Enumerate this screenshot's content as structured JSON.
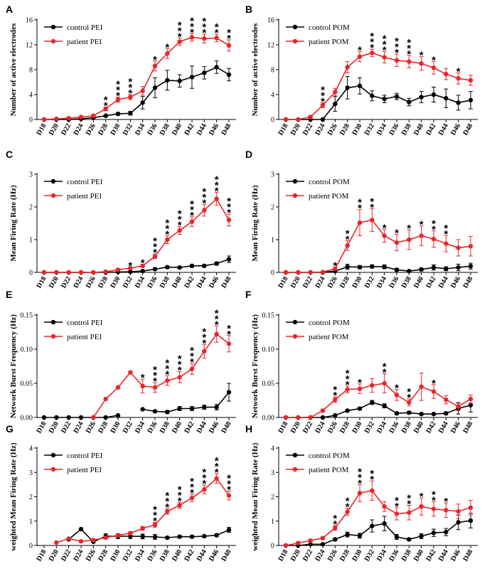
{
  "colors": {
    "control": "#000000",
    "patient": "#e8262a"
  },
  "x_labels": [
    "D18",
    "D20",
    "D22",
    "D24",
    "D26",
    "D28",
    "D30",
    "D32",
    "D34",
    "D36",
    "D38",
    "D40",
    "D42",
    "D44",
    "D46",
    "D48"
  ],
  "chart_data": [
    {
      "panel": "A",
      "type": "line",
      "ylabel": "Number of active electrodes",
      "ylim": [
        0,
        16
      ],
      "yticks": [
        "0",
        "4",
        "8",
        "12",
        "16"
      ],
      "series": [
        {
          "name": "control PEI",
          "values": [
            0,
            0,
            0,
            0.1,
            0.3,
            0.6,
            0.9,
            1.0,
            2.7,
            5.1,
            6.3,
            6.2,
            6.8,
            7.5,
            8.4,
            7.2
          ],
          "err": [
            0,
            0,
            0,
            0,
            0.1,
            0.2,
            0.2,
            0.3,
            1.0,
            1.6,
            1.6,
            1.0,
            1.8,
            1.0,
            1.0,
            1.0
          ]
        },
        {
          "name": "patient PEI",
          "values": [
            0,
            0.1,
            0.2,
            0.4,
            0.6,
            1.7,
            3.2,
            3.6,
            4.6,
            8.6,
            10.6,
            12.5,
            13.2,
            13.0,
            13.1,
            11.9
          ],
          "err": [
            0,
            0,
            0.1,
            0.1,
            0.2,
            0.3,
            0.4,
            0.4,
            0.7,
            0.8,
            0.8,
            0.6,
            0.6,
            0.7,
            0.6,
            0.9
          ]
        }
      ],
      "stars": [
        null,
        null,
        null,
        null,
        null,
        "**",
        "***",
        "***",
        null,
        "*",
        "*",
        "***",
        "***",
        "***",
        "**",
        "**"
      ]
    },
    {
      "panel": "B",
      "type": "line",
      "ylabel": "Number of active electrodes",
      "ylim": [
        0,
        16
      ],
      "yticks": [
        "0",
        "4",
        "8",
        "12",
        "16"
      ],
      "series": [
        {
          "name": "control POM",
          "values": [
            0,
            0,
            0,
            0,
            2.5,
            5.1,
            5.4,
            3.8,
            3.3,
            3.7,
            2.8,
            3.6,
            4.0,
            3.4,
            2.7,
            3.1
          ],
          "err": [
            0,
            0,
            0,
            0,
            1.2,
            1.8,
            1.3,
            0.8,
            0.6,
            0.5,
            0.6,
            0.9,
            1.2,
            1.5,
            1.2,
            1.4
          ]
        },
        {
          "name": "patient POM",
          "values": [
            0,
            0,
            0.4,
            2.3,
            4.4,
            8.4,
            10.1,
            10.7,
            10.0,
            9.5,
            9.3,
            9.0,
            8.3,
            7.3,
            6.6,
            6.3
          ],
          "err": [
            0,
            0,
            0.2,
            0.4,
            0.6,
            0.9,
            0.8,
            0.6,
            0.9,
            1.0,
            1.0,
            1.1,
            1.0,
            0.9,
            0.9,
            0.8
          ]
        }
      ],
      "stars": [
        null,
        null,
        null,
        "***",
        null,
        null,
        "*",
        "***",
        "***",
        "***",
        "***",
        "*",
        "*",
        null,
        "*",
        null
      ]
    },
    {
      "panel": "C",
      "type": "line",
      "ylabel": "Mean Firing Rate (Hz)",
      "ylim": [
        0,
        3
      ],
      "yticks": [
        "0",
        "1",
        "2",
        "3"
      ],
      "series": [
        {
          "name": "control PEI",
          "values": [
            0,
            0,
            0,
            0,
            0,
            0,
            0.01,
            0.02,
            0.04,
            0.1,
            0.16,
            0.15,
            0.2,
            0.2,
            0.27,
            0.4
          ],
          "err": [
            0,
            0,
            0,
            0,
            0,
            0,
            0,
            0.01,
            0.02,
            0.03,
            0.03,
            0.03,
            0.04,
            0.04,
            0.05,
            0.1
          ]
        },
        {
          "name": "patient PEI",
          "values": [
            0,
            0,
            0,
            0,
            0,
            0.02,
            0.08,
            0.13,
            0.2,
            0.49,
            1.0,
            1.28,
            1.55,
            1.9,
            2.25,
            1.6
          ],
          "err": [
            0,
            0,
            0,
            0,
            0,
            0.01,
            0.02,
            0.03,
            0.05,
            0.07,
            0.12,
            0.12,
            0.15,
            0.18,
            0.2,
            0.18
          ]
        }
      ],
      "stars": [
        null,
        null,
        null,
        null,
        null,
        null,
        null,
        "*",
        "*",
        "***",
        "***",
        "***",
        "***",
        "***",
        "***",
        "***"
      ]
    },
    {
      "panel": "D",
      "type": "line",
      "ylabel": "Mean Firing Rate (Hz)",
      "ylim": [
        0,
        3
      ],
      "yticks": [
        "0",
        "1",
        "2",
        "3"
      ],
      "series": [
        {
          "name": "control POM",
          "values": [
            0,
            0,
            0,
            0,
            0.04,
            0.17,
            0.16,
            0.18,
            0.17,
            0.08,
            0.04,
            0.09,
            0.15,
            0.11,
            0.15,
            0.19
          ],
          "err": [
            0,
            0,
            0,
            0,
            0.02,
            0.08,
            0.05,
            0.05,
            0.06,
            0.04,
            0.02,
            0.04,
            0.08,
            0.06,
            0.1,
            0.09
          ]
        },
        {
          "name": "patient POM",
          "values": [
            0,
            0,
            0,
            0.01,
            0.11,
            0.82,
            1.52,
            1.6,
            1.12,
            0.91,
            1.0,
            1.12,
            1.02,
            0.88,
            0.75,
            0.8
          ],
          "err": [
            0,
            0,
            0,
            0.01,
            0.05,
            0.15,
            0.4,
            0.35,
            0.2,
            0.25,
            0.3,
            0.3,
            0.25,
            0.25,
            0.25,
            0.3
          ]
        }
      ],
      "stars": [
        null,
        null,
        null,
        null,
        "*",
        "**",
        "**",
        "**",
        "*",
        "*",
        "*",
        "*",
        "**",
        "**",
        null,
        null
      ]
    },
    {
      "panel": "E",
      "type": "line",
      "ylabel": "Network Burst Frequency (Hz)",
      "ylim": [
        0,
        0.15
      ],
      "yticks": [
        "0.00",
        "0.05",
        "0.10",
        "0.15"
      ],
      "series": [
        {
          "name": "control PEI",
          "values": [
            0,
            0,
            0,
            0,
            0,
            0,
            0.003,
            null,
            0.012,
            0.009,
            0.008,
            0.013,
            0.013,
            0.015,
            0.015,
            0.037
          ],
          "err": [
            0,
            0,
            0,
            0,
            0,
            0,
            0,
            null,
            0.001,
            0.001,
            0.002,
            0.003,
            0.003,
            0.003,
            0.004,
            0.013
          ]
        },
        {
          "name": "patient PEI",
          "values": [
            null,
            null,
            null,
            null,
            0,
            0.027,
            0.044,
            0.066,
            0.046,
            0.044,
            0.054,
            0.059,
            0.071,
            0.097,
            0.122,
            0.108
          ],
          "err": [
            null,
            null,
            null,
            null,
            0,
            0,
            0,
            0,
            0.01,
            0.007,
            0.007,
            0.008,
            0.008,
            0.01,
            0.012,
            0.012
          ]
        }
      ],
      "stars": [
        null,
        null,
        null,
        null,
        null,
        null,
        null,
        null,
        "*",
        "***",
        "***",
        "***",
        "***",
        "***",
        "***",
        "**"
      ]
    },
    {
      "panel": "F",
      "type": "line",
      "ylabel": "Network Burst Frequency (Hz)",
      "ylim": [
        0,
        0.15
      ],
      "yticks": [
        "0.00",
        "0.05",
        "0.10",
        "0.15"
      ],
      "series": [
        {
          "name": "control POM",
          "values": [
            0,
            0,
            0,
            0,
            0.003,
            0.01,
            0.013,
            0.022,
            0.017,
            0.006,
            0.007,
            0.005,
            0.005,
            0.006,
            0.013,
            0.018
          ],
          "err": [
            0,
            0,
            0,
            0,
            0.001,
            0.002,
            0.002,
            0.003,
            0.003,
            0.002,
            0.002,
            0.001,
            0.001,
            0.002,
            0.008,
            0.01
          ]
        },
        {
          "name": "patient POM",
          "values": [
            0,
            0,
            0,
            0.01,
            0.026,
            0.041,
            0.042,
            0.047,
            0.05,
            0.033,
            0.022,
            0.045,
            0.038,
            0.026,
            0.016,
            0.027
          ],
          "err": [
            0,
            0,
            0,
            0.002,
            0.004,
            0.005,
            0.007,
            0.01,
            0.014,
            0.008,
            0.005,
            0.02,
            0.01,
            0.006,
            0.006,
            0.006
          ]
        }
      ],
      "stars": [
        null,
        null,
        null,
        null,
        "**",
        "***",
        "*",
        null,
        "**",
        "*",
        "**",
        null,
        "*",
        null,
        null,
        null
      ]
    },
    {
      "panel": "G",
      "type": "line",
      "ylabel": "weighted Mean Firing Rate (Hz)",
      "ylim": [
        0,
        4
      ],
      "yticks": [
        "0",
        "1",
        "2",
        "3",
        "4"
      ],
      "series": [
        {
          "name": "control PEI",
          "values": [
            null,
            null,
            0.25,
            0.67,
            0.15,
            0.38,
            0.38,
            0.38,
            0.37,
            0.35,
            0.32,
            0.36,
            0.36,
            0.38,
            0.42,
            0.64
          ],
          "err": [
            null,
            null,
            0,
            0,
            0,
            0.1,
            0.1,
            0.1,
            0.1,
            0.1,
            0.05,
            0.05,
            0.05,
            0.05,
            0.05,
            0.1
          ]
        },
        {
          "name": "patient PEI",
          "values": [
            null,
            0.12,
            0.28,
            0.17,
            0.22,
            0.32,
            0.42,
            0.5,
            0.7,
            0.85,
            1.4,
            1.65,
            1.95,
            2.3,
            2.75,
            2.05
          ],
          "err": [
            null,
            0,
            0,
            0,
            0,
            0.05,
            0.05,
            0.07,
            0.08,
            0.1,
            0.12,
            0.12,
            0.15,
            0.18,
            0.2,
            0.18
          ]
        }
      ],
      "stars": [
        null,
        null,
        null,
        null,
        null,
        null,
        null,
        null,
        null,
        "***",
        "***",
        "***",
        "***",
        "***",
        "***",
        "***"
      ]
    },
    {
      "panel": "H",
      "type": "line",
      "ylabel": "weighted Mean Firing Rate (Hz)",
      "ylim": [
        0,
        4
      ],
      "yticks": [
        "0",
        "1",
        "2",
        "3",
        "4"
      ],
      "series": [
        {
          "name": "control POM",
          "values": [
            0,
            0,
            0.05,
            0.05,
            0.25,
            0.45,
            0.4,
            0.8,
            0.9,
            0.35,
            0.25,
            0.38,
            0.52,
            0.55,
            0.95,
            1.02
          ],
          "err": [
            0,
            0,
            0,
            0,
            0.05,
            0.1,
            0.1,
            0.25,
            0.3,
            0.1,
            0.05,
            0.1,
            0.15,
            0.15,
            0.3,
            0.3
          ]
        },
        {
          "name": "patient POM",
          "values": [
            0,
            0.1,
            0.2,
            0.3,
            0.72,
            1.38,
            2.15,
            2.25,
            1.6,
            1.3,
            1.35,
            1.6,
            1.5,
            1.45,
            1.4,
            1.55
          ],
          "err": [
            0,
            0,
            0.05,
            0.05,
            0.1,
            0.15,
            0.35,
            0.4,
            0.2,
            0.25,
            0.3,
            0.35,
            0.3,
            0.3,
            0.3,
            0.3
          ]
        }
      ],
      "stars": [
        null,
        null,
        null,
        null,
        "**",
        "**",
        "***",
        "**",
        null,
        "**",
        "**",
        "*",
        "**",
        "*",
        null,
        null
      ]
    }
  ]
}
